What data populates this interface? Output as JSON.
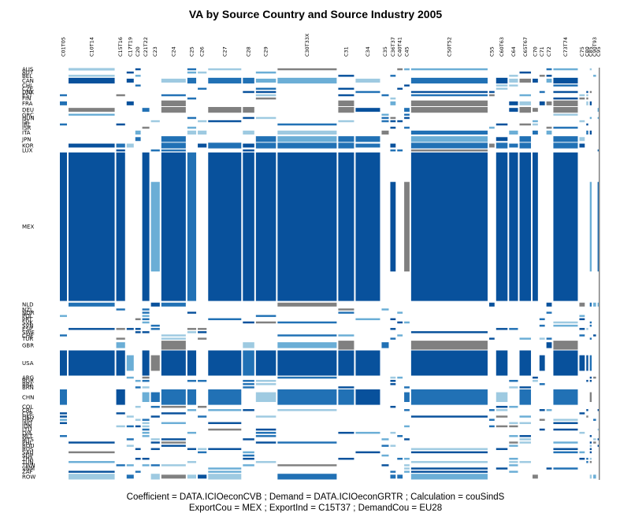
{
  "chart_data": {
    "type": "heatmap",
    "title": "VA by Source Country and Source Industry 2005",
    "footer": [
      "Coefficient = DATA.ICIOeconCVB ; Demand = DATA.ICIOeconGRTR ; Calculation = couSindS",
      "ExportCou = MEX ; ExportInd = C15T37 ; DemandCou = EU28"
    ],
    "colors": {
      "high": "#08519c",
      "mid": "#2171b5",
      "low": "#6baed6",
      "faint": "#9ecae1",
      "negative": "#808080"
    },
    "columns": [
      {
        "label": "C01T05",
        "w": 1.0
      },
      {
        "label": "C10T14",
        "w": 5.5
      },
      {
        "label": "C15T16",
        "w": 1.2
      },
      {
        "label": "C17T19",
        "w": 1.0
      },
      {
        "label": "C20",
        "w": 0.8
      },
      {
        "label": "C21T22",
        "w": 1.0
      },
      {
        "label": "C23",
        "w": 1.2
      },
      {
        "label": "C24",
        "w": 3.0
      },
      {
        "label": "C25",
        "w": 1.2
      },
      {
        "label": "C26",
        "w": 1.2
      },
      {
        "label": "C27",
        "w": 4.0
      },
      {
        "label": "C28",
        "w": 1.5
      },
      {
        "label": "C29",
        "w": 2.5
      },
      {
        "label": "C30T33X",
        "w": 7.0
      },
      {
        "label": "C31",
        "w": 2.0
      },
      {
        "label": "C34",
        "w": 3.0
      },
      {
        "label": "C35",
        "w": 1.0
      },
      {
        "label": "C36T37",
        "w": 0.8
      },
      {
        "label": "C40T41",
        "w": 0.8
      },
      {
        "label": "C45",
        "w": 0.8
      },
      {
        "label": "C50T52",
        "w": 9.0
      },
      {
        "label": "C55",
        "w": 0.8
      },
      {
        "label": "C60T63",
        "w": 1.5
      },
      {
        "label": "C64",
        "w": 1.2
      },
      {
        "label": "C65T67",
        "w": 1.5
      },
      {
        "label": "C70",
        "w": 0.8
      },
      {
        "label": "C71",
        "w": 0.8
      },
      {
        "label": "C72",
        "w": 0.8
      },
      {
        "label": "C73T74",
        "w": 3.0
      },
      {
        "label": "C75",
        "w": 0.8
      },
      {
        "label": "C80",
        "w": 0.4
      },
      {
        "label": "C85",
        "w": 0.4
      },
      {
        "label": "C90T93",
        "w": 0.5
      },
      {
        "label": "C95",
        "w": 0.4
      }
    ],
    "rows": [
      {
        "label": "AUS",
        "w": 1
      },
      {
        "label": "AUT",
        "w": 1
      },
      {
        "label": "BEL",
        "w": 1
      },
      {
        "label": "CAN",
        "w": 2
      },
      {
        "label": "CHL",
        "w": 1
      },
      {
        "label": "CZE",
        "w": 1
      },
      {
        "label": "DNK",
        "w": 1
      },
      {
        "label": "EST",
        "w": 1
      },
      {
        "label": "FIN",
        "w": 1
      },
      {
        "label": "FRA",
        "w": 2
      },
      {
        "label": "DEU",
        "w": 2
      },
      {
        "label": "GRC",
        "w": 1
      },
      {
        "label": "HUN",
        "w": 1
      },
      {
        "label": "ISL",
        "w": 1
      },
      {
        "label": "IRL",
        "w": 1
      },
      {
        "label": "ISR",
        "w": 1
      },
      {
        "label": "ITA",
        "w": 2
      },
      {
        "label": "JPN",
        "w": 2
      },
      {
        "label": "KOR",
        "w": 2
      },
      {
        "label": "LUX",
        "w": 1
      },
      {
        "label": "MEX",
        "w": 46
      },
      {
        "label": "NLD",
        "w": 2
      },
      {
        "label": "NZL",
        "w": 1
      },
      {
        "label": "NOR",
        "w": 1
      },
      {
        "label": "POL",
        "w": 1
      },
      {
        "label": "PRT",
        "w": 1
      },
      {
        "label": "SVK",
        "w": 1
      },
      {
        "label": "SVN",
        "w": 1
      },
      {
        "label": "ESP",
        "w": 1
      },
      {
        "label": "SWE",
        "w": 1
      },
      {
        "label": "CHE",
        "w": 1
      },
      {
        "label": "TUR",
        "w": 1
      },
      {
        "label": "GBR",
        "w": 3
      },
      {
        "label": "USA",
        "w": 8
      },
      {
        "label": "ARG",
        "w": 1
      },
      {
        "label": "BGR",
        "w": 1
      },
      {
        "label": "BRA",
        "w": 1
      },
      {
        "label": "BRN",
        "w": 1
      },
      {
        "label": "CHN",
        "w": 5
      },
      {
        "label": "COL",
        "w": 1
      },
      {
        "label": "CRI",
        "w": 1
      },
      {
        "label": "CYP",
        "w": 1
      },
      {
        "label": "HKG",
        "w": 1
      },
      {
        "label": "HRV",
        "w": 1
      },
      {
        "label": "IND",
        "w": 1
      },
      {
        "label": "IDN",
        "w": 1
      },
      {
        "label": "LTU",
        "w": 1
      },
      {
        "label": "LVA",
        "w": 1
      },
      {
        "label": "MLT",
        "w": 1
      },
      {
        "label": "MYS",
        "w": 1
      },
      {
        "label": "PHL",
        "w": 1
      },
      {
        "label": "ROU",
        "w": 1
      },
      {
        "label": "RUS",
        "w": 1
      },
      {
        "label": "SAU",
        "w": 1
      },
      {
        "label": "SGP",
        "w": 1
      },
      {
        "label": "THA",
        "w": 1
      },
      {
        "label": "TUN",
        "w": 1
      },
      {
        "label": "TWN",
        "w": 1
      },
      {
        "label": "VNM",
        "w": 1
      },
      {
        "label": "ZAF",
        "w": 1
      },
      {
        "label": "ROW",
        "w": 2
      }
    ],
    "rowLabelsShown": [
      "AUS",
      "AUT",
      "BEL",
      "CAN",
      "CHL",
      "CZE",
      "DNK",
      "EST",
      "FIN",
      "FRA",
      "DEU",
      "GRC",
      "HUN",
      "ISL",
      "IRL",
      "ISR",
      "ITA",
      "JPN",
      "KOR",
      "LUX",
      "MEX",
      "NLD",
      "NZL",
      "NOR",
      "POL",
      "PRT",
      "SVK",
      "SVN",
      "ESP",
      "SWE",
      "CHE",
      "TUR",
      "GBR",
      "USA",
      "ARG",
      "BGR",
      "BRA",
      "BRN",
      "CHN",
      "COL",
      "CRI",
      "CYP",
      "HKG",
      "HRV",
      "IND",
      "IDN",
      "LTU",
      "LVA",
      "MLT",
      "MYS",
      "PHL",
      "ROU",
      "RUS",
      "SAU",
      "SGP",
      "THA",
      "TUN",
      "TWN",
      "VNM",
      "ZAF",
      "ROW"
    ],
    "levels_note": "cell level: 0 none, 1 faint, 2 low, 3 mid, 4 high, -1 negative",
    "cells": {
      "MEX": {
        "C10T14": 4,
        "C15T16": 4,
        "C24": 4,
        "C27": 4,
        "C29": 4,
        "C30T33X": 4,
        "C31": 4,
        "C34": 4,
        "C50T52": 4,
        "C60T63": 4,
        "C65T67": 4,
        "C73T74": 4,
        "C01T05": 4,
        "C21T22": 4,
        "C25": 3,
        "C28": 4,
        "C64": 4,
        "C70": 4
      },
      "USA": {
        "C10T14": 4,
        "C24": 4,
        "C27": 4,
        "C29": 4,
        "C30T33X": 4,
        "C31": 4,
        "C34": 4,
        "C50T52": 4,
        "C60T63": 4,
        "C65T67": 4,
        "C73T74": 4,
        "C01T05": 4,
        "C15T16": 4,
        "C21T22": 4,
        "C25": 4,
        "C28": 3
      },
      "CHN": {
        "C30T33X": 3,
        "C50T52": 3,
        "C34": 4,
        "C24": 3,
        "C27": 3,
        "C31": 3,
        "C25": 3,
        "C01T05": 3,
        "C15T16": 4,
        "C65T67": 3,
        "C73T74": 3
      },
      "KOR": {
        "C30T33X": 3,
        "C50T52": 3,
        "C27": 3,
        "C24": 3,
        "C31": 3,
        "C65T67": 3,
        "C73T74": 3,
        "C60T63": 3,
        "C29": 3
      },
      "JPN": {
        "C24": 3,
        "C30T33X": 2,
        "C50T52": 2,
        "C31": 3,
        "C73T74": 3,
        "C65T67": 3,
        "C29": 3,
        "C34": 3
      },
      "CAN": {
        "C10T14": 4,
        "C25": 3,
        "C27": 3,
        "C28": 3,
        "C30T33X": 2,
        "C50T52": 3,
        "C60T63": 4,
        "C73T74": 4
      },
      "AUS": {
        "C10T14": 1
      },
      "DEU": {
        "C24": -1,
        "C27": -1,
        "C31": -1,
        "C50T52": -1,
        "C73T74": -1,
        "C28": -1,
        "C65T67": -1
      },
      "FRA": {
        "C24": -1,
        "C31": -1,
        "C50T52": -1,
        "C73T74": -1
      },
      "ROW": {
        "C10T14": 1,
        "C30T33X": 3,
        "C50T52": 2,
        "C27": 1,
        "C23": 1
      },
      "GBR": {
        "C24": -1,
        "C31": -1,
        "C50T52": -1,
        "C73T74": -1
      }
    }
  }
}
